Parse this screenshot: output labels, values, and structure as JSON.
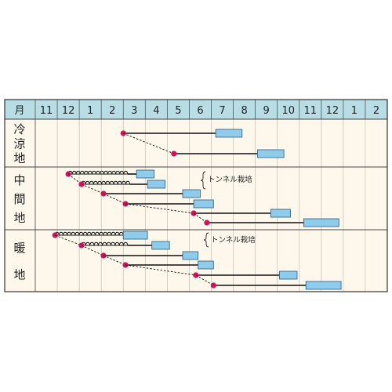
{
  "header": {
    "month_label": "月",
    "months": [
      "11",
      "12",
      "1",
      "2",
      "3",
      "4",
      "5",
      "6",
      "7",
      "8",
      "9",
      "10",
      "11",
      "12",
      "1",
      "2"
    ]
  },
  "regions": [
    {
      "id": "cool",
      "label": "冷涼地",
      "chars": [
        "冷",
        "涼",
        "地"
      ]
    },
    {
      "id": "middle",
      "label": "中間地",
      "chars": [
        "中",
        "間",
        "地"
      ]
    },
    {
      "id": "warm",
      "label": "暖地",
      "chars": [
        "暖",
        "地"
      ]
    }
  ],
  "notes": {
    "tunnel_middle": "トンネル栽培",
    "tunnel_warm": "トンネル栽培"
  },
  "colors": {
    "header_bg": "#b9dde4",
    "body_bg": "#fdf7ec",
    "seed_dot": "#d1125a",
    "harvest_box": "#8fcbea",
    "line": "#111111",
    "grid": "#cfc6b6"
  },
  "legend_semantics": {
    "dot": "sowing",
    "line": "growing period",
    "coil_line": "tunnel cultivation",
    "box": "harvest"
  },
  "schedule": {
    "cool": [
      {
        "sow": 4.0,
        "harvest_start": 8.2,
        "harvest_end": 9.4,
        "tunnel_until": null
      },
      {
        "sow": 6.3,
        "harvest_start": 10.1,
        "harvest_end": 11.3,
        "tunnel_until": null
      }
    ],
    "middle": [
      {
        "sow": 1.5,
        "harvest_start": 4.6,
        "harvest_end": 5.4,
        "tunnel_until": 4.2
      },
      {
        "sow": 2.1,
        "harvest_start": 5.1,
        "harvest_end": 5.9,
        "tunnel_until": 4.3
      },
      {
        "sow": 3.1,
        "harvest_start": 6.7,
        "harvest_end": 7.5,
        "tunnel_until": null
      },
      {
        "sow": 4.1,
        "harvest_start": 7.2,
        "harvest_end": 8.1,
        "tunnel_until": null
      },
      {
        "sow": 7.2,
        "harvest_start": 10.7,
        "harvest_end": 11.6,
        "tunnel_until": null
      },
      {
        "sow": 7.8,
        "harvest_start": 12.2,
        "harvest_end": 13.8,
        "tunnel_until": null
      }
    ],
    "warm": [
      {
        "sow": 0.9,
        "harvest_start": 4.0,
        "harvest_end": 5.1,
        "tunnel_until": 4.0
      },
      {
        "sow": 2.1,
        "harvest_start": 5.3,
        "harvest_end": 6.1,
        "tunnel_until": 4.2
      },
      {
        "sow": 3.1,
        "harvest_start": 6.7,
        "harvest_end": 7.4,
        "tunnel_until": null
      },
      {
        "sow": 4.1,
        "harvest_start": 7.4,
        "harvest_end": 8.1,
        "tunnel_until": null
      },
      {
        "sow": 7.3,
        "harvest_start": 11.1,
        "harvest_end": 11.9,
        "tunnel_until": null
      },
      {
        "sow": 8.1,
        "harvest_start": 12.3,
        "harvest_end": 13.9,
        "tunnel_until": null
      }
    ]
  }
}
